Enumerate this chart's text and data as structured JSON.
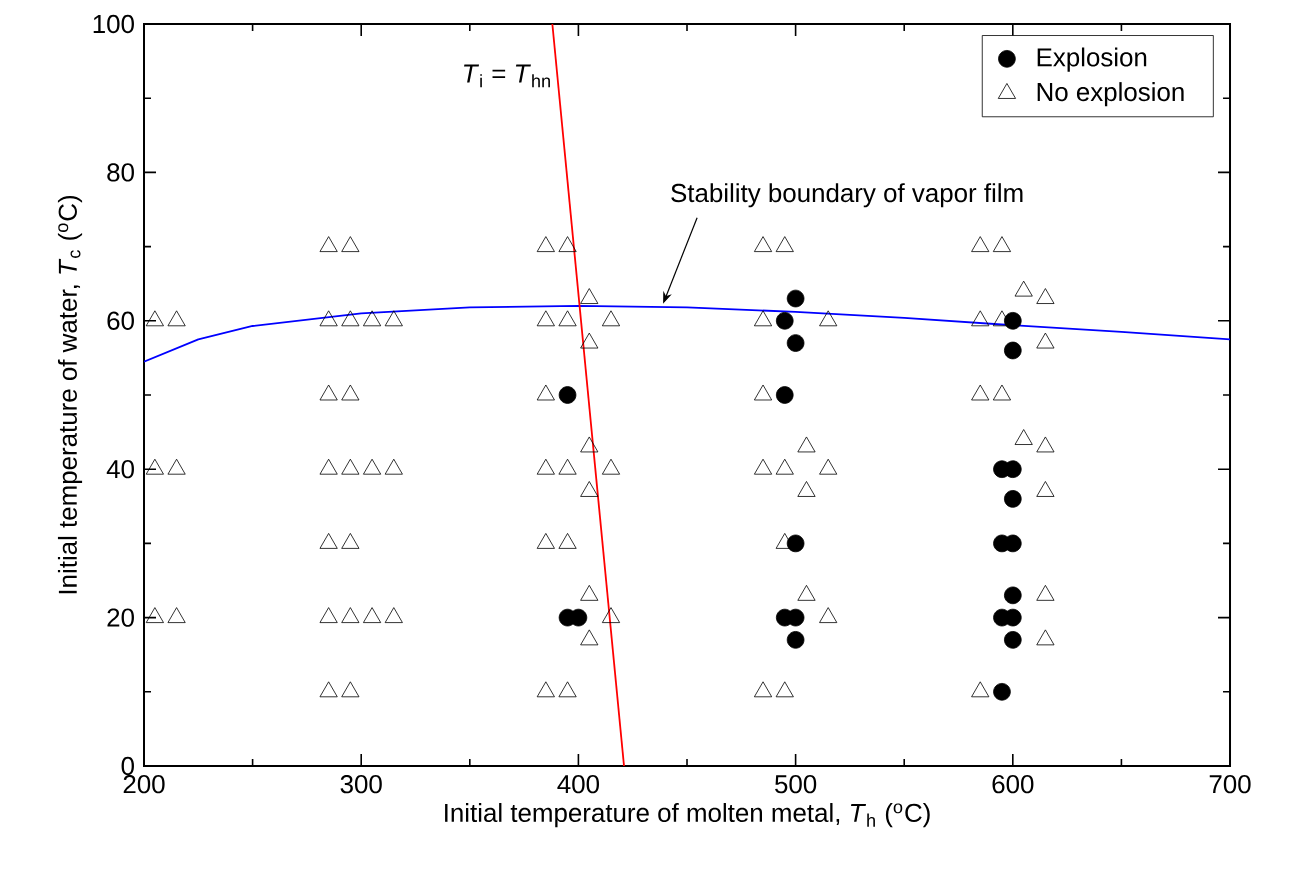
{
  "chart_data": {
    "type": "scatter",
    "xlabel": "Initial temperature of molten metal, *T*$_{h}$ ($^{o}$C)",
    "ylabel": "Initial temperature of water, *T*$_{c}$ ($^{o}$C)",
    "xlim": [
      200,
      700
    ],
    "xticks": [
      200,
      300,
      400,
      500,
      600,
      700
    ],
    "ylim": [
      0,
      100
    ],
    "yticks": [
      0,
      20,
      40,
      60,
      80,
      100
    ],
    "legend": "top right",
    "grid": false,
    "series": [
      {
        "name": "Explosion",
        "marker": "circle",
        "color": "#000000",
        "x": [
          395,
          395,
          400,
          495,
          500,
          500,
          495,
          500,
          495,
          500,
          500,
          600,
          600,
          595,
          600,
          600,
          595,
          600,
          600,
          595,
          600,
          600,
          595
        ],
        "values": [
          50,
          20,
          20,
          60,
          63,
          57,
          50,
          30,
          20,
          20,
          17,
          60,
          56,
          40,
          40,
          36,
          30,
          30,
          23,
          20,
          20,
          17,
          10
        ]
      },
      {
        "name": "No explosion",
        "marker": "triangle",
        "color": "#000000",
        "x": [
          205,
          215,
          205,
          215,
          205,
          215,
          285,
          295,
          305,
          315,
          285,
          295,
          305,
          315,
          285,
          295,
          305,
          315,
          285,
          295,
          285,
          295,
          285,
          295,
          285,
          295,
          385,
          395,
          385,
          395,
          385,
          395,
          385,
          395,
          415,
          385,
          395,
          415,
          405,
          405,
          405,
          405,
          385,
          405,
          405,
          415,
          485,
          495,
          485,
          495,
          485,
          515,
          485,
          485,
          495,
          515,
          505,
          505,
          495,
          505,
          515,
          585,
          595,
          585,
          595,
          585,
          595,
          605,
          615,
          615,
          605,
          615,
          615,
          615,
          615,
          585
        ],
        "values": [
          60,
          60,
          40,
          40,
          20,
          20,
          60,
          60,
          60,
          60,
          40,
          40,
          40,
          40,
          20,
          20,
          20,
          20,
          70,
          70,
          50,
          50,
          30,
          30,
          10,
          10,
          70,
          70,
          30,
          30,
          10,
          10,
          60,
          60,
          60,
          40,
          40,
          40,
          63,
          57,
          43,
          37,
          50,
          23,
          17,
          20,
          70,
          70,
          10,
          10,
          60,
          60,
          50,
          40,
          40,
          40,
          43,
          37,
          30,
          23,
          20,
          70,
          70,
          50,
          50,
          60,
          60,
          64,
          63,
          57,
          44,
          43,
          37,
          23,
          17,
          10
        ]
      },
      {
        "type": "line",
        "marker": "none",
        "color": "#0000ff",
        "x": [
          200,
          225,
          250,
          300,
          350,
          400,
          450,
          500,
          550,
          600,
          650,
          700
        ],
        "values": [
          54.5,
          57.5,
          59.3,
          61.0,
          61.8,
          62.0,
          61.8,
          61.2,
          60.4,
          59.4,
          58.5,
          57.5
        ]
      },
      {
        "type": "line",
        "marker": "none",
        "color": "#ff0000",
        "x": [
          421,
          388
        ],
        "values": [
          0,
          100
        ]
      }
    ],
    "annotations": [
      {
        "text": "*T*$_{i}$ = *T*$_{hn}$",
        "x": 389,
        "y": 93
      },
      {
        "text": "Stability boundary of vapor film",
        "x": 439,
        "y": 62.3
      }
    ]
  }
}
